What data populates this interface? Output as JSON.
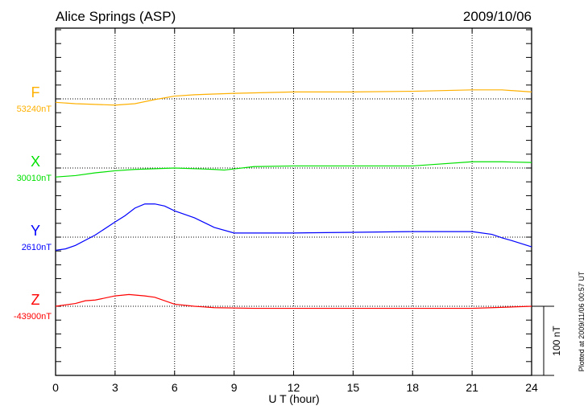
{
  "chart_data": {
    "type": "line",
    "title": "Alice Springs (ASP)",
    "date": "2009/10/06",
    "xlabel": "U T (hour)",
    "xlim": [
      0,
      24
    ],
    "xticks": [
      "0",
      "3",
      "6",
      "9",
      "12",
      "15",
      "18",
      "21",
      "24"
    ],
    "scale_label": "100 nT",
    "footer": "Plotted at 2009/11/06 00:57 UT",
    "grid": true,
    "series": [
      {
        "name": "F",
        "baseline_label": "53240nT",
        "color": "#ffb000",
        "x": [
          0,
          1,
          2,
          3,
          4,
          5,
          6,
          7,
          9,
          12,
          15,
          18,
          21,
          22.5,
          24
        ],
        "y": [
          -5,
          -7,
          -8,
          -9,
          -7,
          -1,
          4,
          6,
          8,
          10,
          10,
          11,
          13,
          13,
          10
        ]
      },
      {
        "name": "X",
        "baseline_label": "30010nT",
        "color": "#00e000",
        "x": [
          0,
          1,
          2,
          3,
          4,
          6,
          8,
          8.5,
          10,
          12,
          15,
          18,
          19,
          21,
          22.5,
          24
        ],
        "y": [
          -13,
          -11,
          -7,
          -4,
          -2,
          0,
          -2,
          -3,
          2,
          3,
          3,
          3,
          5,
          9,
          9,
          8
        ]
      },
      {
        "name": "Y",
        "baseline_label": "2610nT",
        "color": "#0000ff",
        "x": [
          0,
          0.5,
          1,
          2,
          3,
          3.5,
          4,
          4.5,
          5,
          5.5,
          6,
          7,
          8,
          9,
          12,
          15,
          18,
          21,
          22,
          22.5,
          23,
          24
        ],
        "y": [
          -19,
          -17,
          -12,
          3,
          22,
          31,
          42,
          48,
          48,
          45,
          38,
          28,
          14,
          6,
          6,
          7,
          8,
          8,
          4,
          -1,
          -5,
          -14
        ]
      },
      {
        "name": "Z",
        "baseline_label": "-43900nT",
        "color": "#ff0000",
        "x": [
          0,
          1,
          1.5,
          2,
          3,
          3.7,
          4.5,
          5,
          6,
          7,
          8,
          10,
          12,
          15,
          18,
          21,
          22,
          24
        ],
        "y": [
          0,
          4,
          8,
          9,
          15,
          17,
          15,
          13,
          3,
          0,
          -2,
          -3,
          -3,
          -3,
          -3,
          -3,
          -2,
          0
        ]
      }
    ]
  }
}
